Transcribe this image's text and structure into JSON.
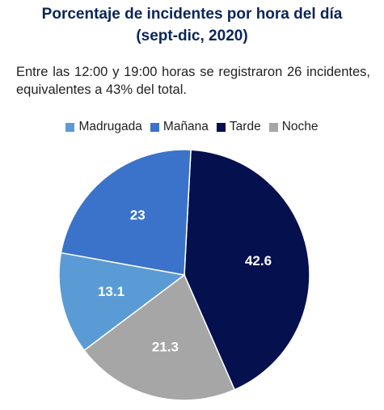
{
  "title_line1": "Porcentaje de incidentes por hora del día",
  "title_line2": "(sept-dic, 2020)",
  "description": "Entre las 12:00 y 19:00 horas se registraron 26 incidentes, equivalentes a 43% del total.",
  "chart_data": {
    "type": "pie",
    "title": "Porcentaje de incidentes por hora del día (sept-dic, 2020)",
    "legend_position": "top",
    "categories": [
      "Madrugada",
      "Mañana",
      "Tarde",
      "Noche"
    ],
    "values": [
      13.1,
      23,
      42.6,
      21.3
    ],
    "value_labels": [
      "13.1",
      "23",
      "42.6",
      "21.3"
    ],
    "colors": [
      "#5b9bd5",
      "#3a73c9",
      "#05104f",
      "#a6a6a6"
    ],
    "slice_order": [
      "Tarde",
      "Noche",
      "Madrugada",
      "Mañana"
    ]
  }
}
